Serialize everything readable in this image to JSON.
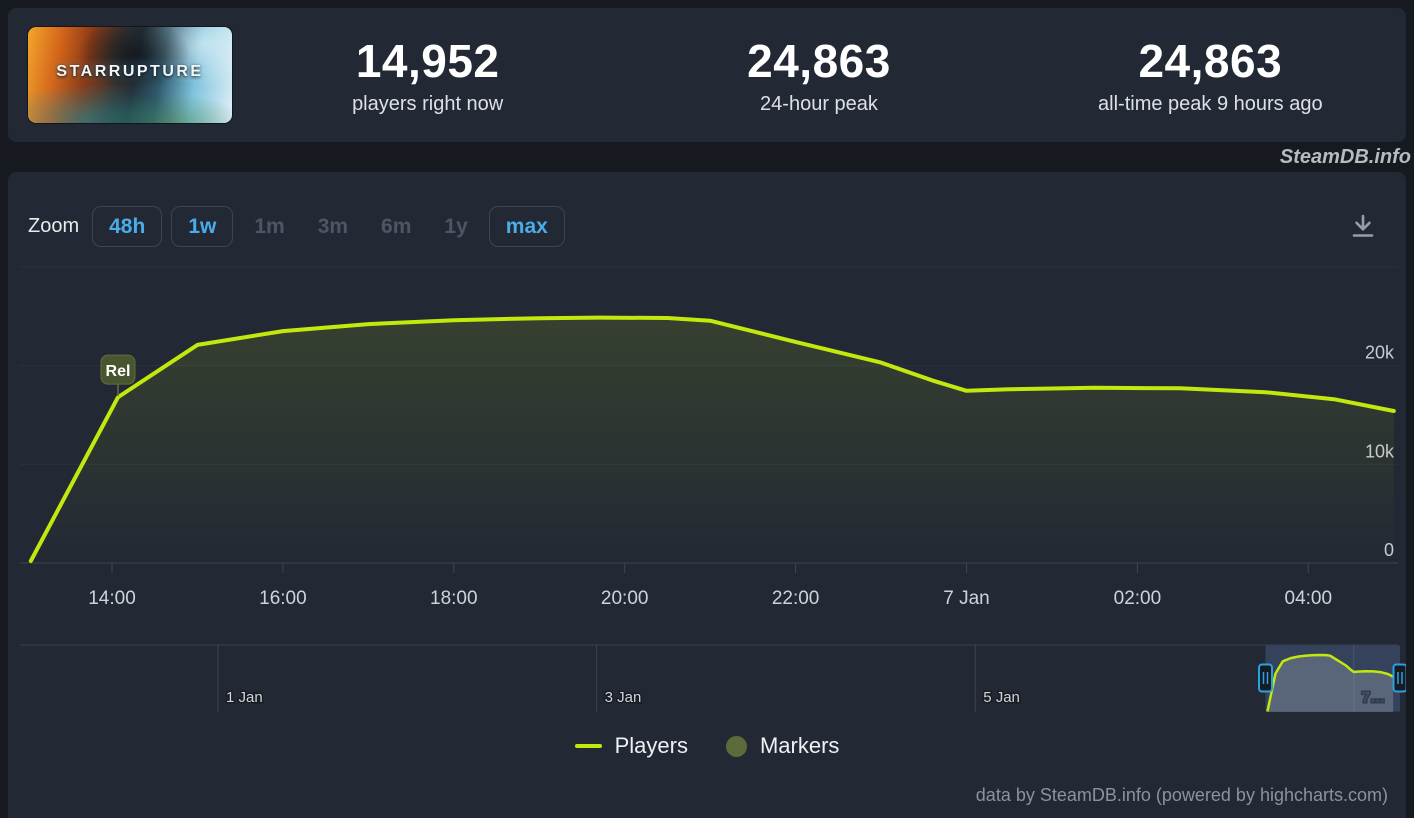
{
  "header": {
    "game_title": "StarRupture",
    "stats": [
      {
        "value": "14,952",
        "label": "players right now"
      },
      {
        "value": "24,863",
        "label": "24-hour peak"
      },
      {
        "value": "24,863",
        "label": "all-time peak 9 hours ago"
      }
    ]
  },
  "watermark": "SteamDB.info",
  "toolbar": {
    "zoom_label": "Zoom",
    "ranges": [
      {
        "label": "48h",
        "enabled": true
      },
      {
        "label": "1w",
        "enabled": true
      },
      {
        "label": "1m",
        "enabled": false
      },
      {
        "label": "3m",
        "enabled": false
      },
      {
        "label": "6m",
        "enabled": false
      },
      {
        "label": "1y",
        "enabled": false
      },
      {
        "label": "max",
        "enabled": true
      }
    ]
  },
  "colors": {
    "accent_line": "#c3e80d",
    "area_tint": "#c3e80d",
    "marker_olive": "#5d6b3b",
    "handle_blue": "#2ba2e0",
    "selection_mask": "rgba(102,133,194,0.28)",
    "nav_area_fill": "rgba(150,160,170,0.38)",
    "grid_line": "#2b323f",
    "axis_line": "#3d4554",
    "flag_bg": "#49552e",
    "flag_border": "#5f6e3d"
  },
  "chart_data": {
    "type": "line",
    "title": "",
    "xlabel": "",
    "ylabel": "",
    "x_axis": {
      "unit": "hours since 6 Jan 00:00",
      "ticks": [
        {
          "label": "14:00",
          "t": 14
        },
        {
          "label": "16:00",
          "t": 16
        },
        {
          "label": "18:00",
          "t": 18
        },
        {
          "label": "20:00",
          "t": 20
        },
        {
          "label": "22:00",
          "t": 22
        },
        {
          "label": "7 Jan",
          "t": 24
        },
        {
          "label": "02:00",
          "t": 26
        },
        {
          "label": "04:00",
          "t": 28
        }
      ]
    },
    "y_axis": {
      "max": 30000,
      "ticks": [
        {
          "label": "0",
          "v": 0
        },
        {
          "label": "10k",
          "v": 10000
        },
        {
          "label": "20k",
          "v": 20000
        },
        {
          "label": "",
          "v": 30000
        }
      ]
    },
    "series": [
      {
        "name": "Players",
        "points": [
          [
            13.05,
            200
          ],
          [
            14.07,
            16800
          ],
          [
            15,
            22100
          ],
          [
            16,
            23500
          ],
          [
            17,
            24200
          ],
          [
            18,
            24600
          ],
          [
            19,
            24800
          ],
          [
            19.7,
            24863
          ],
          [
            20.5,
            24820
          ],
          [
            21,
            24550
          ],
          [
            22,
            22400
          ],
          [
            23,
            20300
          ],
          [
            23.6,
            18500
          ],
          [
            24,
            17450
          ],
          [
            24.5,
            17600
          ],
          [
            25.5,
            17750
          ],
          [
            26.5,
            17700
          ],
          [
            27.5,
            17300
          ],
          [
            28.3,
            16600
          ],
          [
            29,
            15400
          ]
        ]
      }
    ],
    "flag": {
      "label": "Rel",
      "t": 14.07,
      "v": 16800
    },
    "legend": [
      {
        "label": "Players",
        "marker": "line"
      },
      {
        "label": "Markers",
        "marker": "circle"
      }
    ]
  },
  "navigator": {
    "ticks": [
      {
        "label": "1 Jan",
        "d": 1,
        "masked": false
      },
      {
        "label": "3 Jan",
        "d": 3,
        "masked": false
      },
      {
        "label": "5 Jan",
        "d": 5,
        "masked": false
      },
      {
        "label": "7…",
        "d": 7,
        "masked": true
      }
    ],
    "selection_days": [
      6.55,
      7.26
    ]
  },
  "credits": "data by SteamDB.info (powered by highcharts.com)"
}
